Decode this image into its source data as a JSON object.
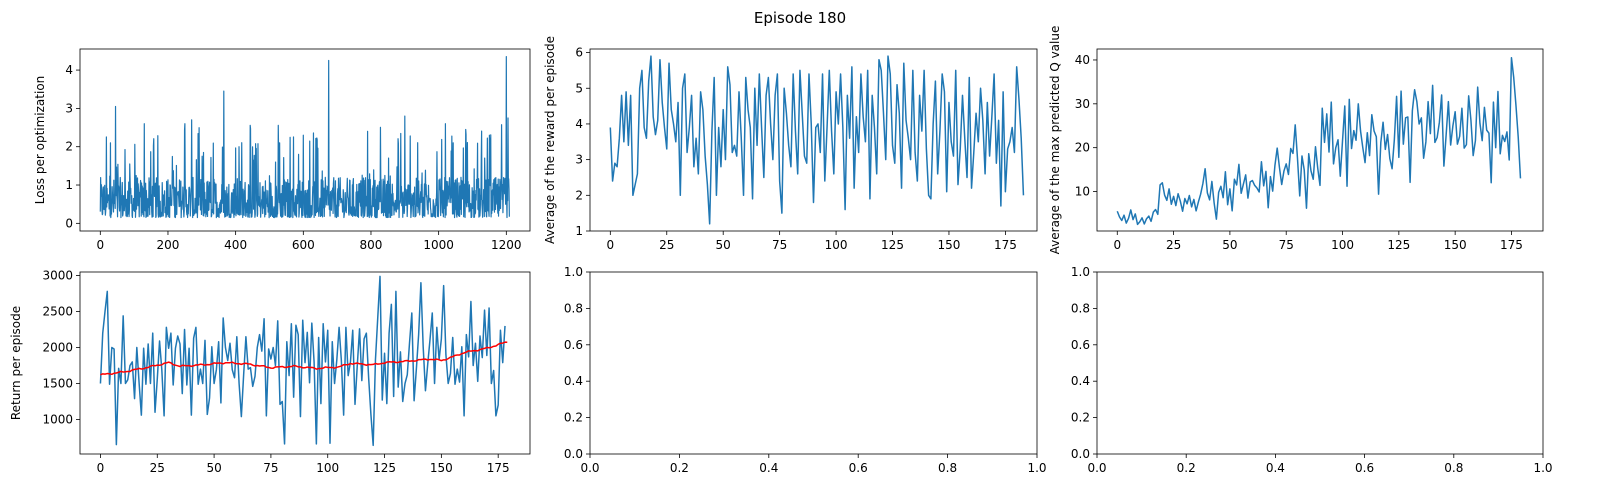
{
  "figure": {
    "title": "Episode 180"
  },
  "colors": {
    "series": "#1f77b4",
    "moving_average": "#ff0000",
    "axes": "#000000"
  },
  "chart_data": [
    {
      "id": "loss",
      "type": "line",
      "ylabel": "Loss per optimization",
      "xlabel": "",
      "xlim": [
        -60,
        1270
      ],
      "ylim": [
        -0.2,
        4.55
      ],
      "xticks": [
        0,
        200,
        400,
        600,
        800,
        1000,
        1200
      ],
      "yticks": [
        0,
        1,
        2,
        3,
        4
      ],
      "series": [
        {
          "color": "#1f77b4",
          "style": "dense_noise",
          "n": 1210,
          "base_range": [
            0.15,
            1.2
          ],
          "spikes": [
            [
              30,
              2.1
            ],
            [
              45,
              3.05
            ],
            [
              130,
              2.6
            ],
            [
              250,
              2.6
            ],
            [
              270,
              2.7
            ],
            [
              365,
              3.45
            ],
            [
              410,
              2.0
            ],
            [
              530,
              2.1
            ],
            [
              600,
              2.3
            ],
            [
              675,
              4.25
            ],
            [
              790,
              2.4
            ],
            [
              900,
              2.8
            ],
            [
              1020,
              2.6
            ],
            [
              1080,
              2.45
            ],
            [
              1150,
              2.3
            ],
            [
              1200,
              4.35
            ],
            [
              1205,
              2.75
            ]
          ]
        }
      ]
    },
    {
      "id": "reward",
      "type": "line",
      "ylabel": "Average of the reward per episode",
      "xlabel": "",
      "xlim": [
        -9,
        189
      ],
      "ylim": [
        1.0,
        6.1
      ],
      "xticks": [
        0,
        25,
        50,
        75,
        100,
        125,
        150,
        175
      ],
      "yticks": [
        1,
        2,
        3,
        4,
        5,
        6
      ],
      "series": [
        {
          "color": "#1f77b4",
          "n": 180,
          "y": [
            3.9,
            2.4,
            2.9,
            2.8,
            3.6,
            4.8,
            3.5,
            4.9,
            3.4,
            4.8,
            2.0,
            2.3,
            2.6,
            5.0,
            5.5,
            3.9,
            3.6,
            5.2,
            5.9,
            4.2,
            3.7,
            4.1,
            5.8,
            4.6,
            3.9,
            3.3,
            5.7,
            4.4,
            4.0,
            3.5,
            4.6,
            2.0,
            5.0,
            5.4,
            3.2,
            3.9,
            4.8,
            2.8,
            3.6,
            2.6,
            4.9,
            4.4,
            3.1,
            2.3,
            1.2,
            3.8,
            5.3,
            2.0,
            3.9,
            2.8,
            4.4,
            3.0,
            5.6,
            5.1,
            3.2,
            3.4,
            3.1,
            4.9,
            3.6,
            2.0,
            5.3,
            4.4,
            3.9,
            1.9,
            5.0,
            3.4,
            5.4,
            3.9,
            2.5,
            4.8,
            5.3,
            4.0,
            3.0,
            4.8,
            5.4,
            2.4,
            1.5,
            5.0,
            4.3,
            3.4,
            2.8,
            5.4,
            3.8,
            2.6,
            5.5,
            4.3,
            3.1,
            2.9,
            5.4,
            4.0,
            1.8,
            3.9,
            4.0,
            3.2,
            5.4,
            2.4,
            3.9,
            5.5,
            3.8,
            2.6,
            4.9,
            4.0,
            5.4,
            3.9,
            1.6,
            4.8,
            3.6,
            5.6,
            2.2,
            4.2,
            3.2,
            5.4,
            4.2,
            3.5,
            5.5,
            1.9,
            4.8,
            3.9,
            2.6,
            5.8,
            5.5,
            4.3,
            3.0,
            5.9,
            5.4,
            3.4,
            2.9,
            5.1,
            4.3,
            2.2,
            5.7,
            4.1,
            3.6,
            3.0,
            5.5,
            3.2,
            2.4,
            4.8,
            3.8,
            5.5,
            3.3,
            2.0,
            1.9,
            4.0,
            5.2,
            2.6,
            3.8,
            5.4,
            4.9,
            2.1,
            4.6,
            3.5,
            3.1,
            5.5,
            2.3,
            3.3,
            4.8,
            3.6,
            2.5,
            5.3,
            2.2,
            3.2,
            4.3,
            3.5,
            5.0,
            4.1,
            2.6,
            4.6,
            3.1,
            4.2,
            5.4,
            2.9,
            4.1,
            1.7,
            4.9,
            2.1,
            3.3,
            3.5,
            3.9,
            3.2,
            5.6,
            4.7,
            3.6,
            2.0
          ]
        }
      ]
    },
    {
      "id": "qvalue",
      "type": "line",
      "ylabel": "Average of the max predicted Q value",
      "xlabel": "",
      "xlim": [
        -9,
        189
      ],
      "ylim": [
        1.0,
        42.5
      ],
      "xticks": [
        0,
        25,
        50,
        75,
        100,
        125,
        150,
        175
      ],
      "yticks": [
        10,
        20,
        30,
        40
      ],
      "series": [
        {
          "color": "#1f77b4",
          "n": 180,
          "y": [
            5.5,
            4.2,
            3.4,
            4.6,
            2.8,
            3.9,
            5.8,
            3.6,
            4.9,
            2.5,
            3.1,
            4.0,
            2.6,
            3.8,
            4.4,
            3.2,
            5.3,
            5.9,
            4.8,
            11.5,
            12.0,
            9.2,
            8.0,
            10.6,
            7.1,
            8.9,
            6.8,
            9.5,
            7.8,
            5.5,
            8.4,
            7.2,
            9.1,
            6.5,
            8.2,
            5.6,
            7.6,
            9.4,
            11.8,
            15.2,
            9.7,
            8.1,
            12.3,
            7.4,
            3.7,
            9.8,
            11.2,
            8.6,
            14.5,
            7.0,
            10.6,
            5.6,
            12.8,
            11.5,
            16.2,
            9.6,
            11.7,
            13.8,
            8.5,
            12.2,
            12.5,
            11.4,
            10.8,
            9.9,
            16.8,
            11.3,
            14.6,
            6.3,
            13.4,
            10.1,
            16.0,
            19.9,
            15.5,
            11.6,
            14.7,
            16.3,
            13.9,
            19.8,
            18.7,
            25.2,
            17.6,
            9.0,
            18.1,
            14.9,
            6.2,
            18.6,
            14.7,
            12.8,
            20.2,
            15.3,
            11.4,
            29.0,
            21.2,
            27.7,
            19.0,
            30.4,
            16.3,
            20.0,
            21.8,
            13.5,
            21.6,
            29.5,
            11.2,
            31.0,
            19.8,
            23.9,
            21.7,
            30.0,
            23.8,
            20.0,
            16.6,
            23.4,
            18.2,
            27.5,
            23.8,
            22.5,
            9.4,
            21.2,
            25.8,
            19.6,
            23.0,
            17.5,
            15.2,
            21.8,
            31.7,
            17.8,
            32.9,
            20.8,
            26.8,
            27.0,
            12.1,
            28.4,
            33.2,
            30.5,
            25.4,
            26.8,
            17.6,
            21.3,
            30.5,
            23.2,
            34.2,
            21.2,
            22.3,
            25.8,
            32.0,
            15.8,
            22.9,
            30.5,
            20.6,
            25.0,
            28.2,
            20.8,
            22.6,
            29.0,
            19.9,
            20.7,
            31.8,
            26.3,
            18.2,
            21.6,
            33.8,
            25.6,
            21.6,
            29.2,
            24.0,
            23.3,
            12.0,
            30.4,
            20.0,
            32.8,
            18.6,
            22.8,
            21.4,
            23.6,
            17.2,
            40.5,
            36.0,
            29.6,
            22.4,
            13.0
          ]
        }
      ]
    },
    {
      "id": "return",
      "type": "line",
      "ylabel": "Return per episode",
      "xlabel": "",
      "xlim": [
        -9,
        189
      ],
      "ylim": [
        520,
        3050
      ],
      "xticks": [
        0,
        25,
        50,
        75,
        100,
        125,
        150,
        175
      ],
      "yticks": [
        1000,
        1500,
        2000,
        2500,
        3000
      ],
      "series": [
        {
          "color": "#1f77b4",
          "n": 180,
          "y": [
            1500,
            2200,
            2500,
            2780,
            1490,
            2000,
            1980,
            650,
            1710,
            1500,
            2440,
            1500,
            1550,
            1750,
            1800,
            1290,
            2000,
            1510,
            1060,
            1990,
            1490,
            2050,
            1500,
            2200,
            1100,
            1560,
            2090,
            1690,
            1050,
            2280,
            1990,
            2200,
            1480,
            1990,
            2160,
            2050,
            1360,
            2250,
            1480,
            1990,
            1060,
            2130,
            2280,
            1490,
            1700,
            1500,
            2100,
            1070,
            1300,
            2010,
            1500,
            1690,
            2080,
            1230,
            2410,
            2000,
            1820,
            2060,
            1690,
            1580,
            2150,
            1500,
            1040,
            1620,
            2150,
            1700,
            1720,
            1460,
            1600,
            2000,
            2180,
            1950,
            2400,
            1050,
            1980,
            1840,
            2000,
            1750,
            2370,
            1210,
            1250,
            660,
            2080,
            1610,
            2330,
            1310,
            2310,
            2180,
            1040,
            2380,
            1790,
            2210,
            1510,
            2340,
            1800,
            660,
            2140,
            1220,
            2330,
            1800,
            2240,
            670,
            2080,
            1500,
            1830,
            2280,
            1820,
            1060,
            2280,
            1610,
            1800,
            2240,
            1210,
            1750,
            2260,
            1540,
            2120,
            2200,
            1580,
            1070,
            640,
            1830,
            2410,
            2990,
            1270,
            1920,
            1220,
            2200,
            2600,
            1320,
            2780,
            1450,
            1940,
            1250,
            1500,
            1620,
            2070,
            2480,
            1260,
            1700,
            2180,
            2900,
            2010,
            1400,
            1770,
            2110,
            2480,
            1500,
            2280,
            1830,
            2120,
            2860,
            1900,
            1500,
            1640,
            2140,
            1490,
            1700,
            1520,
            2010,
            1050,
            2180,
            1870,
            2640,
            1750,
            2060,
            1530,
            2160,
            1860,
            2520,
            1890,
            2550,
            1500,
            1680,
            1050,
            1200,
            2240,
            1790,
            2300
          ]
        },
        {
          "name": "moving average",
          "color": "#ff0000",
          "n": 180,
          "keypoints": [
            [
              0,
              1620
            ],
            [
              10,
              1660
            ],
            [
              20,
              1720
            ],
            [
              30,
              1790
            ],
            [
              35,
              1740
            ],
            [
              45,
              1760
            ],
            [
              55,
              1790
            ],
            [
              65,
              1770
            ],
            [
              75,
              1720
            ],
            [
              85,
              1740
            ],
            [
              95,
              1710
            ],
            [
              105,
              1730
            ],
            [
              110,
              1780
            ],
            [
              120,
              1760
            ],
            [
              125,
              1790
            ],
            [
              135,
              1810
            ],
            [
              145,
              1840
            ],
            [
              150,
              1820
            ],
            [
              155,
              1870
            ],
            [
              160,
              1930
            ],
            [
              170,
              1990
            ],
            [
              179,
              2080
            ]
          ]
        }
      ]
    },
    {
      "id": "empty1",
      "type": "line",
      "xlim": [
        0,
        1
      ],
      "ylim": [
        0,
        1
      ],
      "xticks": [
        0.0,
        0.2,
        0.4,
        0.6,
        0.8,
        1.0
      ],
      "yticks": [
        0.0,
        0.2,
        0.4,
        0.6,
        0.8,
        1.0
      ],
      "xtick_labels": [
        "0.0",
        "0.2",
        "0.4",
        "0.6",
        "0.8",
        "1.0"
      ],
      "ytick_labels": [
        "0.0",
        "0.2",
        "0.4",
        "0.6",
        "0.8",
        "1.0"
      ],
      "series": []
    },
    {
      "id": "empty2",
      "type": "line",
      "xlim": [
        0,
        1
      ],
      "ylim": [
        0,
        1
      ],
      "xticks": [
        0.0,
        0.2,
        0.4,
        0.6,
        0.8,
        1.0
      ],
      "yticks": [
        0.0,
        0.2,
        0.4,
        0.6,
        0.8,
        1.0
      ],
      "xtick_labels": [
        "0.0",
        "0.2",
        "0.4",
        "0.6",
        "0.8",
        "1.0"
      ],
      "ytick_labels": [
        "0.0",
        "0.2",
        "0.4",
        "0.6",
        "0.8",
        "1.0"
      ],
      "series": []
    }
  ]
}
